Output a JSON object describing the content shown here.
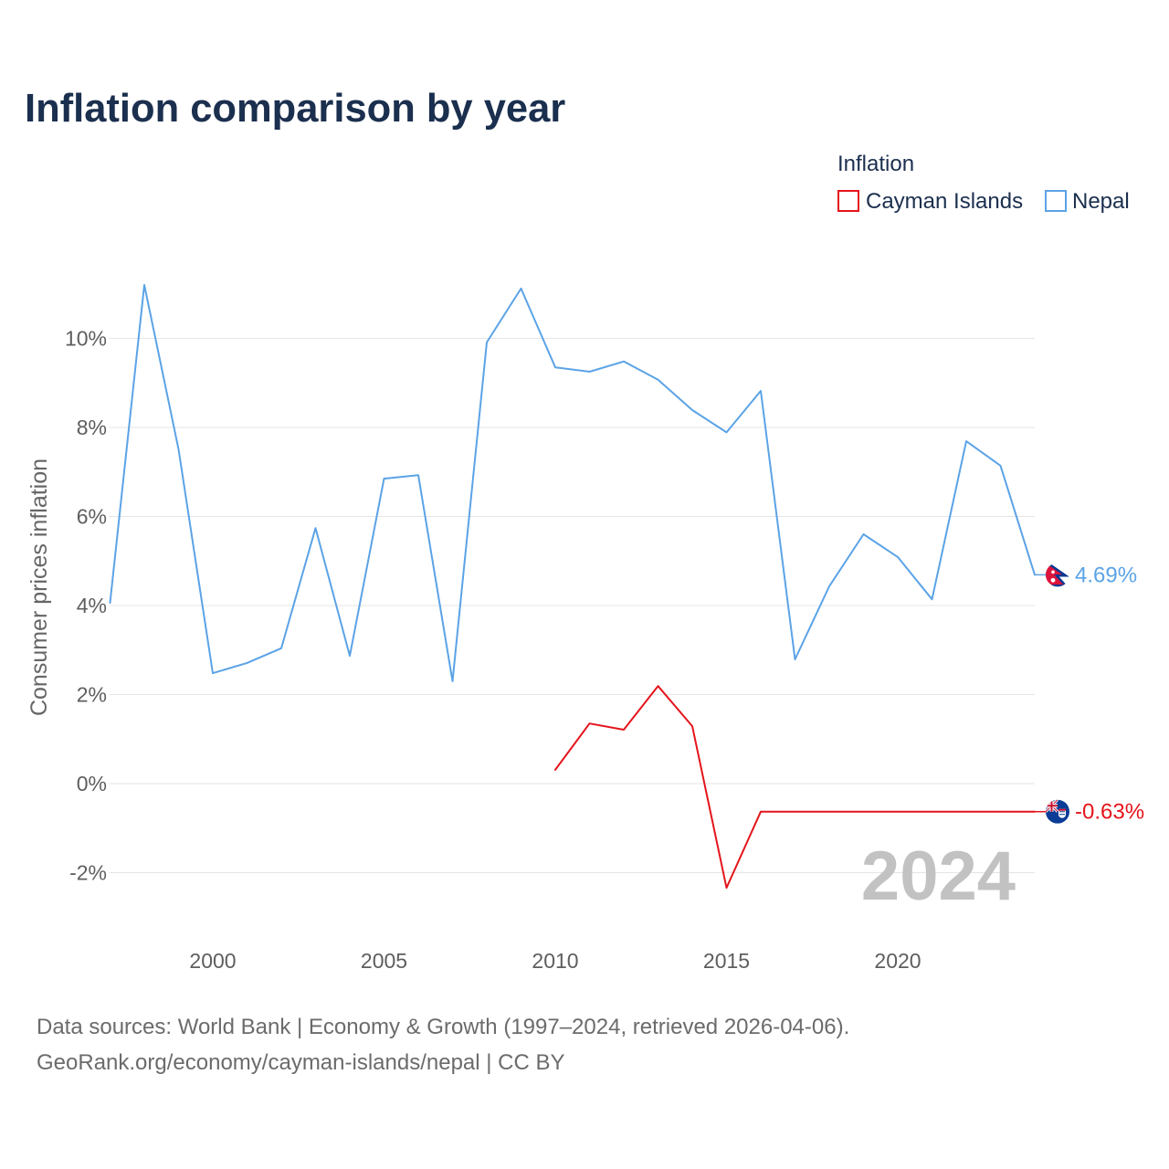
{
  "chart_data": {
    "type": "line",
    "title": "Inflation comparison by year",
    "ylabel": "Consumer prices inflation",
    "legend_title": "Inflation",
    "legend_position": "top-right",
    "xlim": [
      1997,
      2024
    ],
    "ylim": [
      -3.3,
      12.5
    ],
    "xticks": [
      2000,
      2005,
      2010,
      2015,
      2020
    ],
    "xtick_labels": [
      "2000",
      "2005",
      "2010",
      "2015",
      "2020"
    ],
    "yticks": [
      10,
      8,
      6,
      4,
      2,
      0,
      -2
    ],
    "ytick_labels": [
      "10%",
      "8%",
      "6%",
      "4%",
      "2%",
      "0%",
      "-2%"
    ],
    "grid": true,
    "current_year_label": "2024",
    "series": [
      {
        "name": "Cayman Islands",
        "color": "#e4141b",
        "flag_icon": "cayman-islands-flag-icon",
        "end_label": "-0.63%",
        "x": [
          2010,
          2011,
          2012,
          2013,
          2014,
          2015,
          2016,
          2017,
          2018,
          2019,
          2020,
          2021,
          2022,
          2023,
          2024
        ],
        "values": [
          0.31,
          1.35,
          1.21,
          2.19,
          1.29,
          -2.34,
          -0.63,
          -0.63,
          -0.63,
          -0.63,
          -0.63,
          -0.63,
          -0.63,
          -0.63,
          -0.63
        ]
      },
      {
        "name": "Nepal",
        "color": "#5ba3e6",
        "flag_icon": "nepal-flag-icon",
        "end_label": "4.69%",
        "x": [
          1997,
          1998,
          1999,
          2000,
          2001,
          2002,
          2003,
          2004,
          2005,
          2006,
          2007,
          2008,
          2009,
          2010,
          2011,
          2012,
          2013,
          2014,
          2015,
          2016,
          2017,
          2018,
          2019,
          2020,
          2021,
          2022,
          2023,
          2024
        ],
        "values": [
          4.06,
          11.2,
          7.51,
          2.48,
          2.71,
          3.04,
          5.74,
          2.87,
          6.85,
          6.93,
          2.3,
          9.91,
          11.12,
          9.35,
          9.25,
          9.48,
          9.07,
          8.39,
          7.89,
          8.82,
          2.79,
          4.43,
          5.6,
          5.09,
          4.14,
          7.69,
          7.14,
          4.69
        ]
      }
    ]
  },
  "source": {
    "line1": "Data sources: World Bank | Economy & Growth (1997–2024, retrieved 2026-04-06).",
    "line2": "GeoRank.org/economy/cayman-islands/nepal | CC BY"
  }
}
